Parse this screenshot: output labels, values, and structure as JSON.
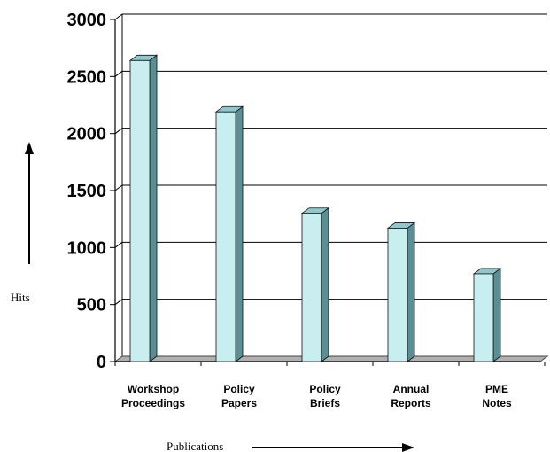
{
  "chart_data": {
    "type": "bar",
    "categories": [
      [
        "Workshop",
        "Proceedings"
      ],
      [
        "Policy",
        "Papers"
      ],
      [
        "Policy",
        "Briefs"
      ],
      [
        "Annual",
        "Reports"
      ],
      [
        "PME",
        "Notes"
      ]
    ],
    "values": [
      2640,
      2190,
      1300,
      1170,
      770
    ],
    "title": "",
    "xlabel": "Publications",
    "ylabel": "Hits",
    "ylim": [
      0,
      3000
    ],
    "yticks": [
      0,
      500,
      1000,
      1500,
      2000,
      2500,
      3000
    ],
    "grid": true,
    "style": "3d",
    "colors": {
      "bar_front": "#c9eef0",
      "bar_side": "#5a8f94",
      "bar_top": "#8fc7cc",
      "bar_outline": "#111111",
      "grid": "#000000",
      "floor": "#b0b0b0"
    }
  }
}
